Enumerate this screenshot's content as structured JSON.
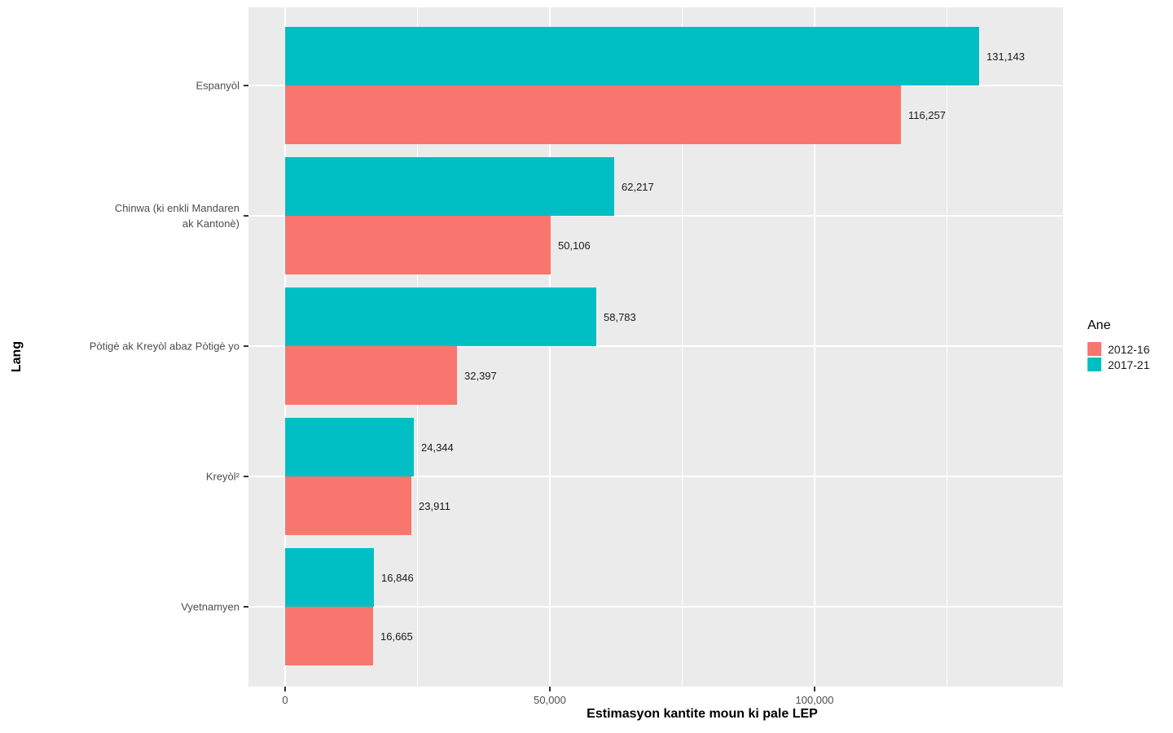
{
  "chart_data": {
    "type": "bar",
    "orientation": "horizontal",
    "xlabel": "Estimasyon kantite moun ki pale LEP",
    "ylabel": "Lang",
    "categories": [
      "Espanyòl",
      "Chinwa (ki enkli Mandaren ak Kantonè)",
      "Pòtigè ak Kreyòl abaz Pòtigè yo",
      "Kreyòl²",
      "Vyetnamyen"
    ],
    "category_label_lines": [
      [
        "Espanyòl"
      ],
      [
        "Chinwa (ki enkli Mandaren",
        "ak Kantonè)"
      ],
      [
        "Pòtigè ak Kreyòl abaz Pòtigè yo"
      ],
      [
        "Kreyòl²"
      ],
      [
        "Vyetnamyen"
      ]
    ],
    "series": [
      {
        "name": "2012-16",
        "color": "#F8766D",
        "values": [
          116257,
          50106,
          32397,
          23911,
          16665
        ],
        "labels": [
          "116,257",
          "50,106",
          "32,397",
          "23,911",
          "16,665"
        ]
      },
      {
        "name": "2017-21",
        "color": "#00BFC4",
        "values": [
          131143,
          62217,
          58783,
          24344,
          16846
        ],
        "labels": [
          "131,143",
          "62,217",
          "58,783",
          "24,344",
          "16,846"
        ]
      }
    ],
    "x_axis": {
      "ticks": [
        {
          "value": 0,
          "label": "0"
        },
        {
          "value": 50000,
          "label": "50,000"
        },
        {
          "value": 100000,
          "label": "100,000"
        }
      ],
      "minor_ticks": [
        25000,
        75000,
        125000
      ],
      "range": [
        -6900,
        146900
      ]
    },
    "legend": {
      "title": "Ane",
      "position": "right",
      "entries": [
        {
          "label": "2012-16",
          "color": "#F8766D"
        },
        {
          "label": "2017-21",
          "color": "#00BFC4"
        }
      ]
    },
    "style": {
      "panel_bg": "#EBEBEB",
      "grid_color": "#FFFFFF",
      "tick_text_color": "#4D4D4D",
      "value_label_color": "#1a1a1a"
    }
  }
}
